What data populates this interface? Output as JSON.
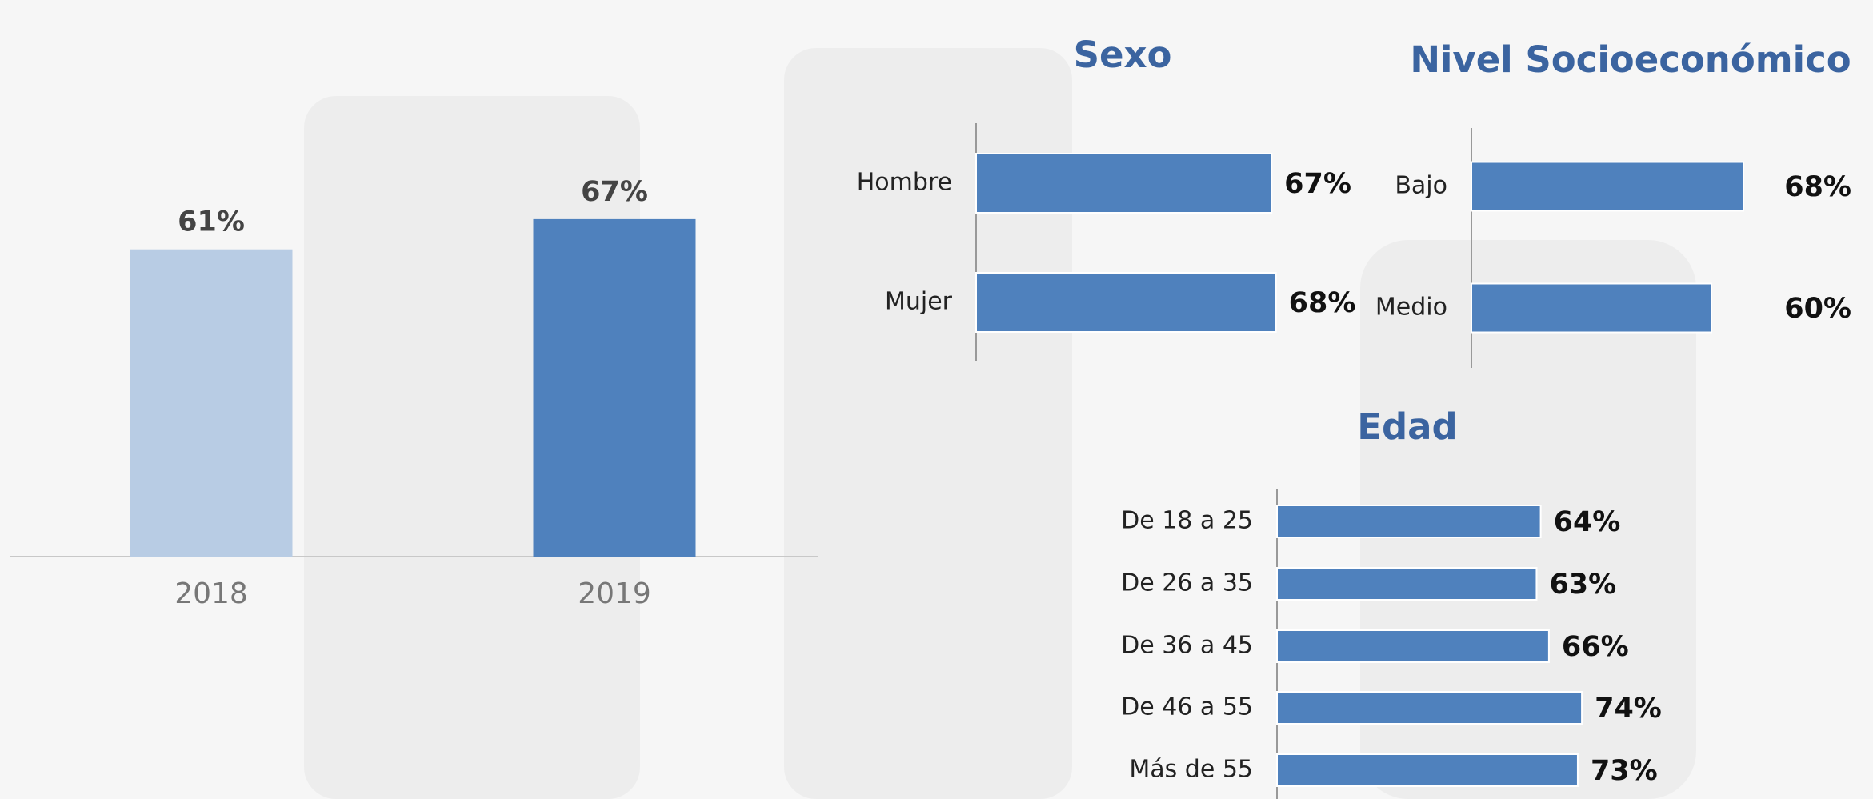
{
  "chart_data": [
    {
      "type": "bar",
      "categories": [
        "2018",
        "2019"
      ],
      "values": [
        61,
        67
      ],
      "value_labels": [
        "61%",
        "67%"
      ],
      "colors": [
        "#b8cce4",
        "#4f81bd"
      ]
    },
    {
      "type": "barh",
      "title": "Sexo",
      "categories": [
        "Hombre",
        "Mujer"
      ],
      "values": [
        67,
        68
      ],
      "value_labels": [
        "67%",
        "68%"
      ],
      "color": "#4f81bd"
    },
    {
      "type": "barh",
      "title": "Nivel Socioeconómico",
      "categories": [
        "Bajo",
        "Medio"
      ],
      "values": [
        68,
        60
      ],
      "value_labels": [
        "68%",
        "60%"
      ],
      "color": "#4f81bd"
    },
    {
      "type": "barh",
      "title": "Edad",
      "categories": [
        "De 18 a 25",
        "De 26 a 35",
        "De 36 a 45",
        "De 46 a 55",
        "Más de 55"
      ],
      "values": [
        64,
        63,
        66,
        74,
        73
      ],
      "value_labels": [
        "64%",
        "63%",
        "66%",
        "74%",
        "73%"
      ],
      "color": "#4f81bd"
    }
  ]
}
